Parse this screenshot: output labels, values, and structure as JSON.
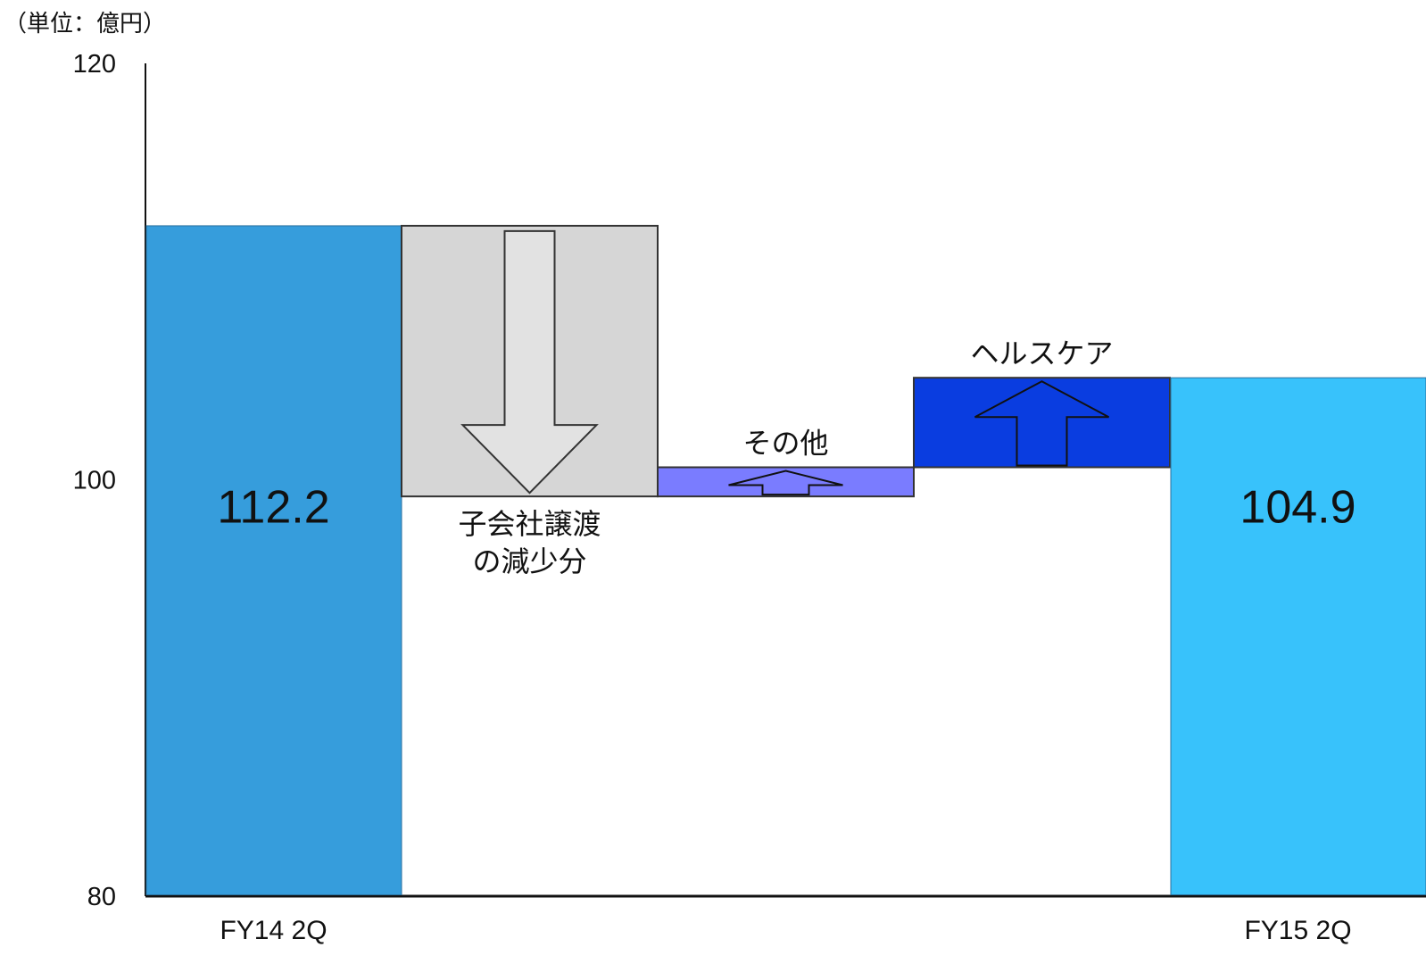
{
  "chart_data": {
    "type": "bar",
    "subtype": "waterfall",
    "unit_label": "（単位：億円）",
    "ylim": [
      80,
      120
    ],
    "yticks": [
      "80",
      "100",
      "120"
    ],
    "steps": [
      {
        "label": "FY14 2Q",
        "kind": "total",
        "value": 112.2,
        "value_label": "112.2",
        "color": "#369ddc"
      },
      {
        "label": "子会社譲渡\nの減少分",
        "kind": "delta",
        "start": 112.2,
        "end": 99.2,
        "direction": "down",
        "color": "#d6d6d6",
        "label_position": "below"
      },
      {
        "label": "その他",
        "kind": "delta",
        "start": 99.2,
        "end": 100.6,
        "direction": "up",
        "color": "#7a7cff",
        "label_position": "above"
      },
      {
        "label": "ヘルスケア",
        "kind": "delta",
        "start": 100.6,
        "end": 104.9,
        "direction": "up",
        "color": "#0a3de0",
        "label_position": "above"
      },
      {
        "label": "FY15 2Q",
        "kind": "total",
        "value": 104.9,
        "value_label": "104.9",
        "color": "#38c2fb"
      }
    ],
    "x_tick_labels": [
      "FY14 2Q",
      "",
      "",
      "",
      "FY15 2Q"
    ],
    "legend": "none",
    "grid": false
  }
}
